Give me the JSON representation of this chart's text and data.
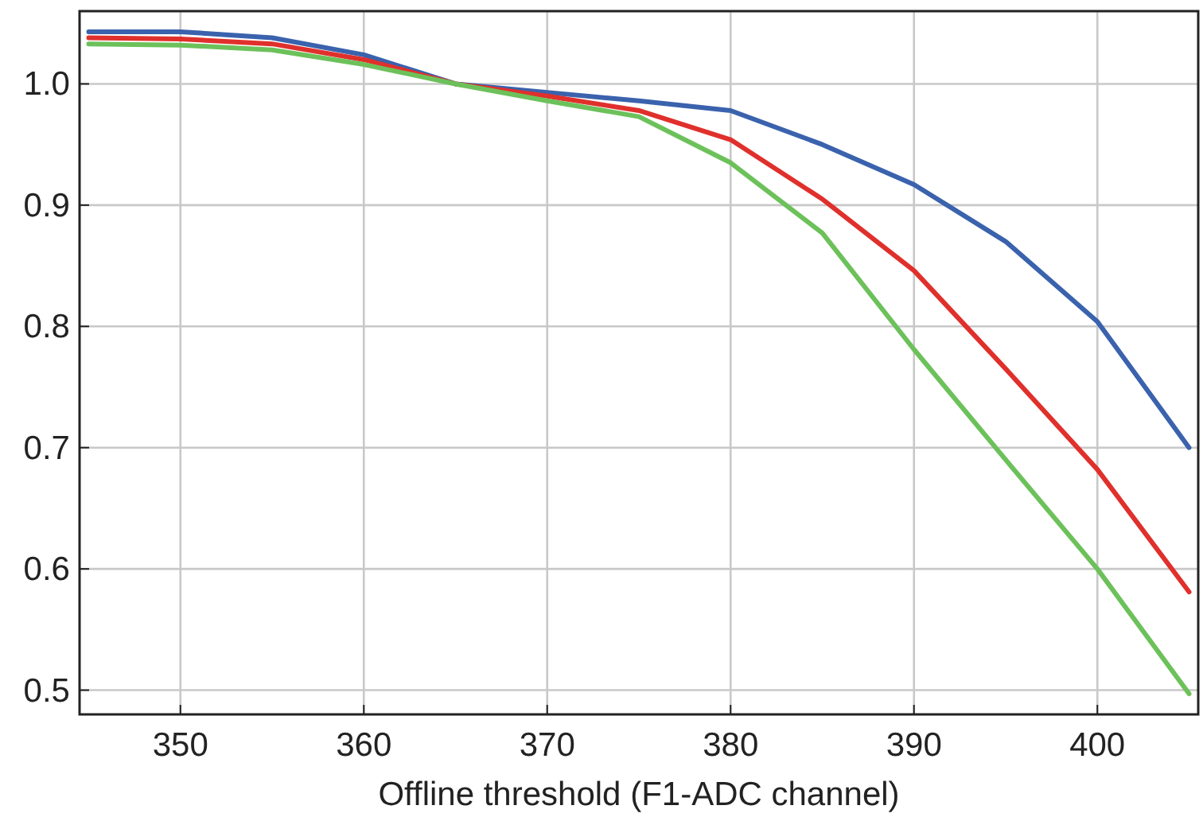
{
  "chart_data": {
    "type": "line",
    "xlabel": "Offline threshold (F1-ADC channel)",
    "x": [
      345,
      350,
      355,
      360,
      365,
      370,
      375,
      380,
      385,
      390,
      395,
      400,
      405
    ],
    "series": [
      {
        "color": "#3a62ad",
        "values": [
          1.043,
          1.043,
          1.038,
          1.024,
          1.0,
          0.993,
          0.986,
          0.978,
          0.95,
          0.917,
          0.87,
          0.804,
          0.7
        ]
      },
      {
        "color": "#e0302c",
        "values": [
          1.038,
          1.037,
          1.033,
          1.02,
          1.0,
          0.99,
          0.978,
          0.954,
          0.905,
          0.846,
          0.765,
          0.682,
          0.581
        ]
      },
      {
        "color": "#6cc15a",
        "values": [
          1.033,
          1.032,
          1.028,
          1.016,
          1.0,
          0.986,
          0.973,
          0.935,
          0.877,
          0.781,
          0.69,
          0.6,
          0.497
        ]
      }
    ],
    "xlim": [
      344.5,
      405.5
    ],
    "ylim": [
      0.48,
      1.06
    ],
    "xticks": [
      350,
      360,
      370,
      380,
      390,
      400
    ],
    "yticks": [
      {
        "value": 0.5,
        "label": "0.5"
      },
      {
        "value": 0.6,
        "label": "0.6"
      },
      {
        "value": 0.7,
        "label": "0.7"
      },
      {
        "value": 0.8,
        "label": "0.8"
      },
      {
        "value": 0.9,
        "label": "0.9"
      },
      {
        "value": 1.0,
        "label": "1.0"
      }
    ],
    "grid": true,
    "marker": "none",
    "line_style": "solid"
  }
}
